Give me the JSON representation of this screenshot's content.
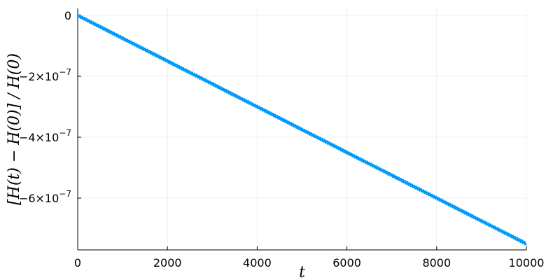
{
  "chart_data": {
    "type": "line",
    "xlabel": "t",
    "ylabel": "[H(t) − H(0)] / H(0)",
    "xlim": [
      0,
      10000
    ],
    "ylim": [
      -7.7e-07,
      2.3e-08
    ],
    "grid": true,
    "legend": "none",
    "x_ticks": [
      {
        "v": 0,
        "label": "0"
      },
      {
        "v": 2000,
        "label": "2000"
      },
      {
        "v": 4000,
        "label": "4000"
      },
      {
        "v": 6000,
        "label": "6000"
      },
      {
        "v": 8000,
        "label": "8000"
      },
      {
        "v": 10000,
        "label": "10000"
      }
    ],
    "y_ticks": [
      {
        "v": 0,
        "label": "0",
        "exp": ""
      },
      {
        "v": -2e-07,
        "label": "−2×10",
        "exp": "−7"
      },
      {
        "v": -4e-07,
        "label": "−4×10",
        "exp": "−7"
      },
      {
        "v": -6e-07,
        "label": "−6×10",
        "exp": "−7"
      }
    ],
    "series": [
      {
        "color": "#009AFA",
        "x": [
          0,
          1000,
          2000,
          3000,
          4000,
          5000,
          6000,
          7000,
          8000,
          9000,
          10000
        ],
        "y": [
          0,
          -7.5e-08,
          -1.5e-07,
          -2.25e-07,
          -3e-07,
          -3.75e-07,
          -4.5e-07,
          -5.25e-07,
          -6e-07,
          -6.75e-07,
          -7.5e-07
        ]
      }
    ]
  }
}
